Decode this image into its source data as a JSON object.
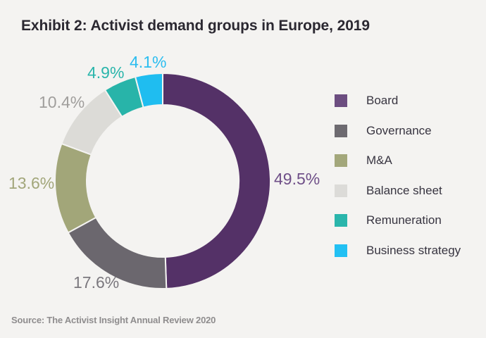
{
  "title": "Exhibit 2: Activist demand groups in Europe, 2019",
  "source": "Source: The Activist Insight Annual Review 2020",
  "background_color": "#f4f3f1",
  "chart_data": {
    "type": "pie",
    "subtype": "donut",
    "title": "Exhibit 2: Activist demand groups in Europe, 2019",
    "categories": [
      "Board",
      "Governance",
      "M&A",
      "Balance sheet",
      "Remuneration",
      "Business strategy"
    ],
    "values": [
      49.5,
      17.6,
      13.6,
      10.4,
      4.9,
      4.1
    ],
    "unit": "%",
    "labels": [
      "49.5%",
      "17.6%",
      "13.6%",
      "10.4%",
      "4.9%",
      "4.1%"
    ],
    "segment_colors": [
      "#543167",
      "#6b676e",
      "#a2a679",
      "#dcdbd7",
      "#28b4a9",
      "#1fbdf0"
    ],
    "legend_colors": [
      "#6c4d80",
      "#6d6a70",
      "#a3a77b",
      "#dcdbd8",
      "#2ab5ab",
      "#22c0f3"
    ],
    "label_colors": [
      "#6f4f88",
      "#7b787e",
      "#a2a67a",
      "#a09e9c",
      "#2ab5ab",
      "#2bbdf0"
    ],
    "start_angle_deg": -90,
    "direction": "clockwise",
    "donut_hole_ratio": 0.7,
    "legend_position": "right",
    "gap_color": "#f4f3f1"
  }
}
